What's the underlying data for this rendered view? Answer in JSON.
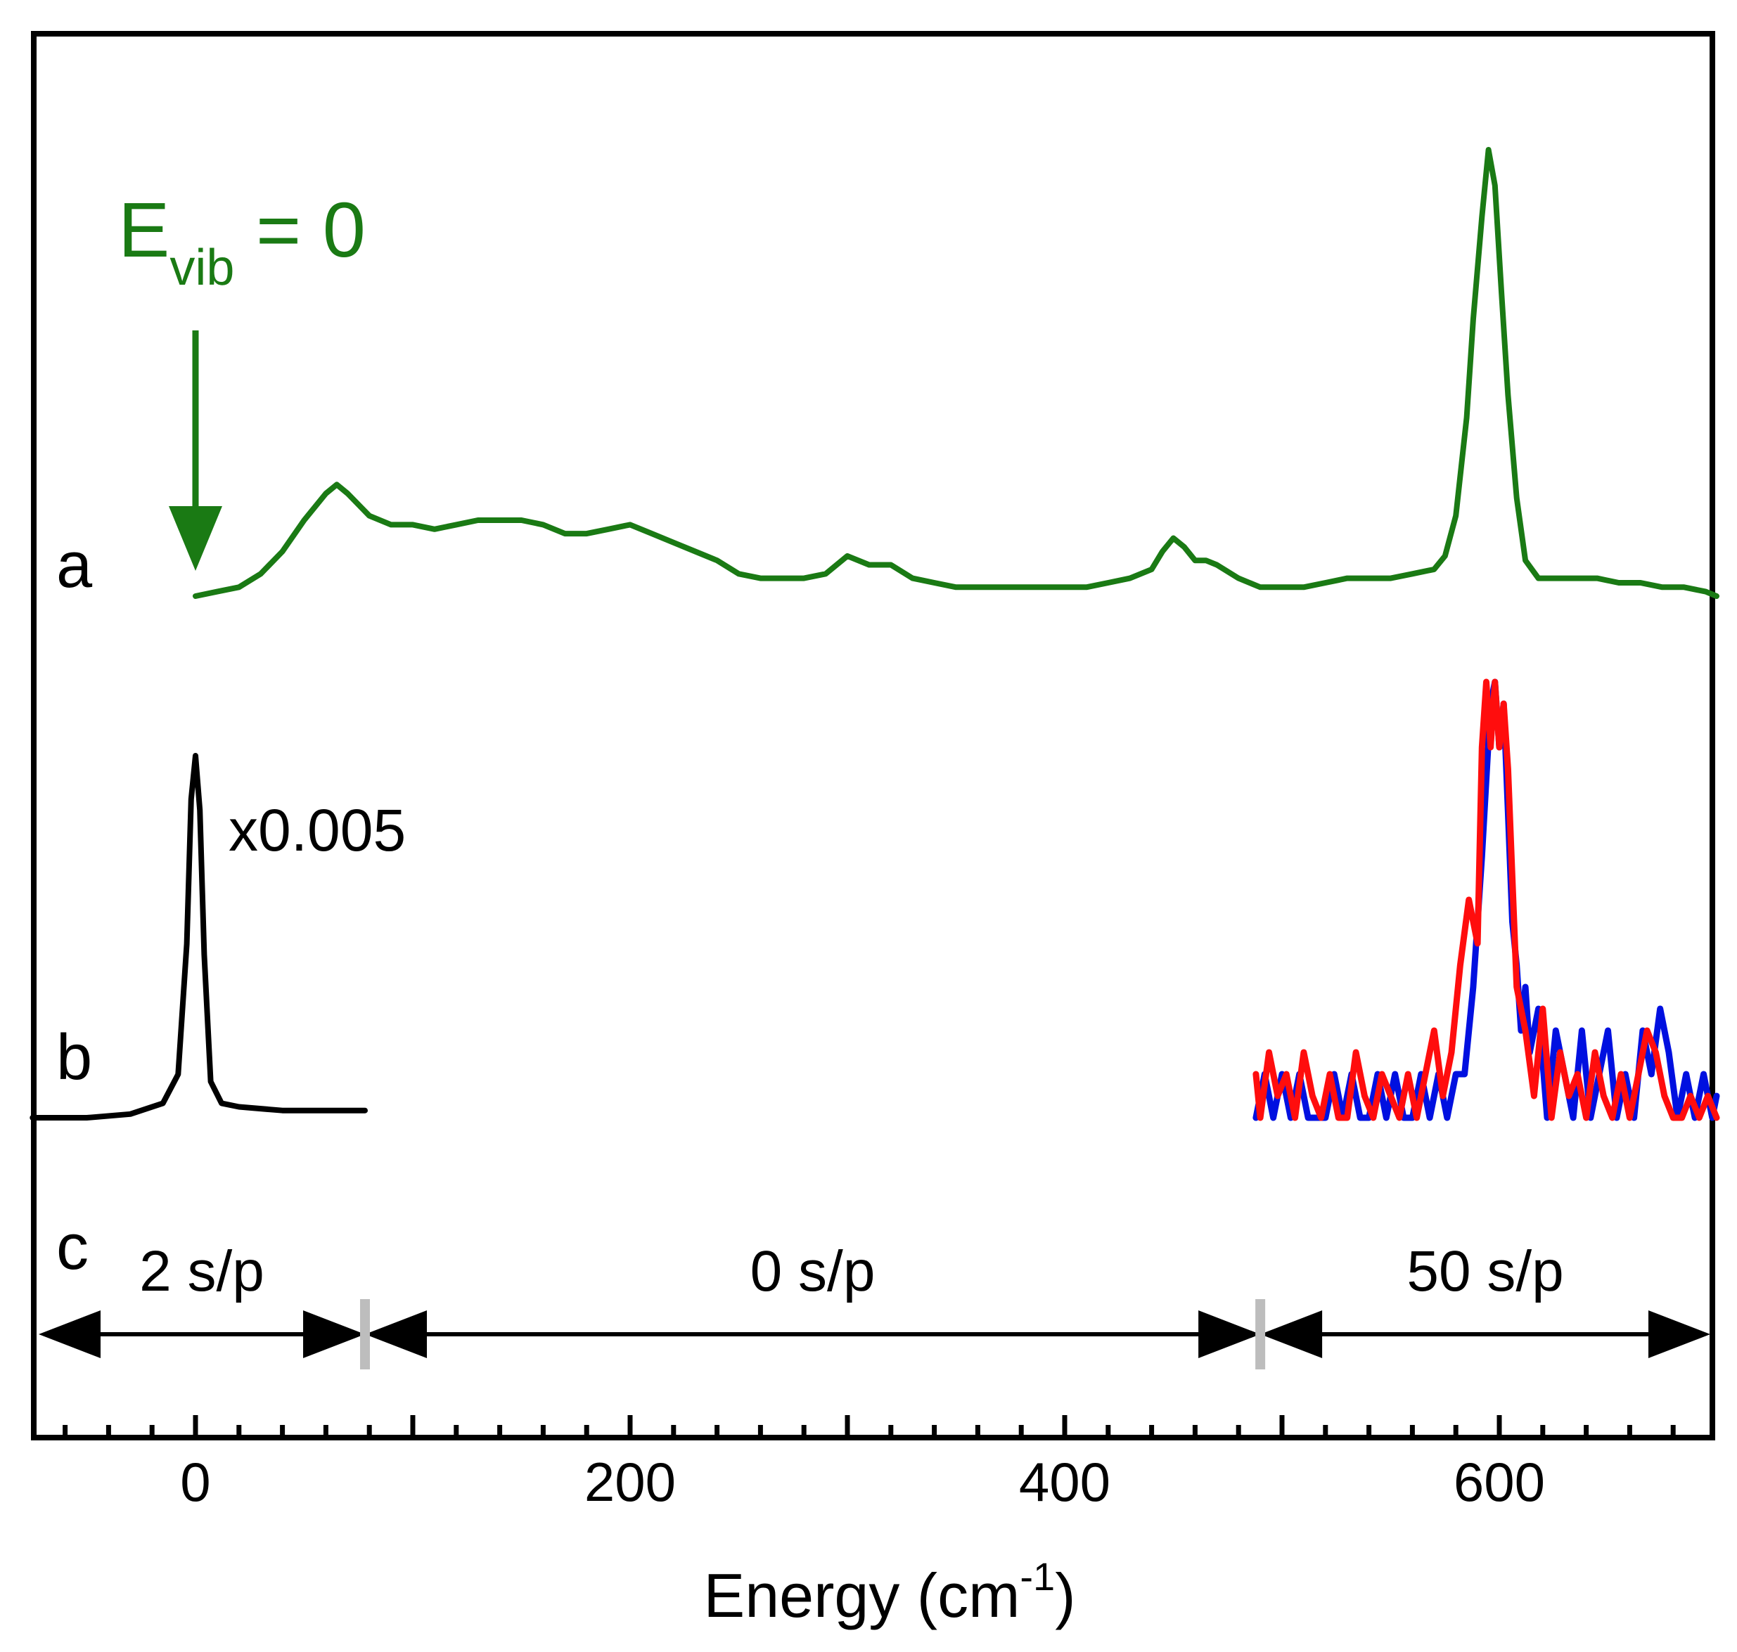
{
  "chart_data": {
    "type": "line",
    "title": "",
    "xlabel": "Energy (cm",
    "xlabel_superscript": "-1",
    "xlabel_suffix": ")",
    "ylabel": "",
    "xlim": [
      -75,
      700
    ],
    "x_ticks": [
      0,
      200,
      400,
      600
    ],
    "x_tick_labels": [
      "0",
      "200",
      "400",
      "600"
    ],
    "minor_tick_step": 20,
    "grid": false,
    "colors": {
      "green": "#1a7a14",
      "black": "#000000",
      "blue": "#0010e0",
      "red": "#ff0d0d",
      "gray": "#bdbdbd"
    },
    "panel_labels": [
      "a",
      "b",
      "c"
    ],
    "annotations": {
      "evib_main": "E",
      "evib_sub": "vib",
      "evib_rest": " = 0",
      "evib_x": 0,
      "scale_factor": "x0.005"
    },
    "series": [
      {
        "name": "a",
        "color": "#1a7a14",
        "x": [
          0,
          10,
          20,
          30,
          40,
          50,
          60,
          65,
          70,
          80,
          90,
          100,
          110,
          120,
          130,
          140,
          150,
          160,
          170,
          180,
          190,
          200,
          210,
          220,
          230,
          240,
          250,
          260,
          270,
          280,
          290,
          300,
          310,
          320,
          330,
          340,
          350,
          360,
          370,
          380,
          390,
          400,
          410,
          420,
          430,
          440,
          445,
          450,
          455,
          460,
          465,
          470,
          480,
          490,
          500,
          510,
          520,
          530,
          540,
          550,
          560,
          570,
          575,
          580,
          585,
          588,
          592,
          595,
          598,
          601,
          604,
          608,
          612,
          618,
          625,
          635,
          645,
          655,
          665,
          675,
          685,
          695,
          700
        ],
        "y": [
          0.0,
          0.01,
          0.02,
          0.05,
          0.1,
          0.17,
          0.23,
          0.25,
          0.23,
          0.18,
          0.16,
          0.16,
          0.15,
          0.16,
          0.17,
          0.17,
          0.17,
          0.16,
          0.14,
          0.14,
          0.15,
          0.16,
          0.14,
          0.12,
          0.1,
          0.08,
          0.05,
          0.04,
          0.04,
          0.04,
          0.05,
          0.09,
          0.07,
          0.07,
          0.04,
          0.03,
          0.02,
          0.02,
          0.02,
          0.02,
          0.02,
          0.02,
          0.02,
          0.03,
          0.04,
          0.06,
          0.1,
          0.13,
          0.11,
          0.08,
          0.08,
          0.07,
          0.04,
          0.02,
          0.02,
          0.02,
          0.03,
          0.04,
          0.04,
          0.04,
          0.05,
          0.06,
          0.09,
          0.18,
          0.4,
          0.62,
          0.85,
          1.0,
          0.92,
          0.68,
          0.45,
          0.22,
          0.08,
          0.04,
          0.04,
          0.04,
          0.04,
          0.03,
          0.03,
          0.02,
          0.02,
          0.01,
          0.0
        ]
      },
      {
        "name": "b",
        "color": "#000000",
        "x": [
          -75,
          -50,
          -30,
          -15,
          -8,
          -4,
          -2,
          0,
          2,
          4,
          7,
          12,
          20,
          40,
          60,
          78
        ],
        "y": [
          0.0,
          0.0,
          0.01,
          0.04,
          0.12,
          0.48,
          0.88,
          1.0,
          0.85,
          0.45,
          0.1,
          0.04,
          0.03,
          0.02,
          0.02,
          0.02
        ]
      },
      {
        "name": "b-blue",
        "color": "#0010e0",
        "x": [
          488,
          492,
          496,
          500,
          504,
          508,
          512,
          516,
          520,
          524,
          528,
          532,
          536,
          540,
          544,
          548,
          552,
          556,
          560,
          564,
          568,
          572,
          576,
          580,
          584,
          588,
          592,
          596,
          598,
          600,
          602,
          604,
          606,
          608,
          610,
          612,
          614,
          618,
          622,
          626,
          630,
          634,
          638,
          642,
          646,
          650,
          654,
          658,
          662,
          666,
          670,
          674,
          678,
          682,
          686,
          690,
          694,
          698,
          700
        ],
        "y": [
          0.0,
          0.1,
          0.0,
          0.1,
          0.0,
          0.1,
          0.0,
          0.0,
          0.0,
          0.1,
          0.0,
          0.1,
          0.0,
          0.0,
          0.1,
          0.0,
          0.1,
          0.0,
          0.0,
          0.1,
          0.0,
          0.1,
          0.0,
          0.1,
          0.1,
          0.3,
          0.6,
          0.95,
          1.0,
          0.85,
          0.95,
          0.7,
          0.45,
          0.35,
          0.2,
          0.3,
          0.15,
          0.25,
          0.0,
          0.2,
          0.1,
          0.0,
          0.2,
          0.0,
          0.1,
          0.2,
          0.0,
          0.1,
          0.0,
          0.2,
          0.1,
          0.25,
          0.15,
          0.0,
          0.1,
          0.0,
          0.1,
          0.0,
          0.05
        ]
      },
      {
        "name": "b-red",
        "color": "#ff0d0d",
        "x": [
          488,
          490,
          494,
          498,
          502,
          506,
          510,
          514,
          518,
          522,
          526,
          530,
          534,
          538,
          542,
          546,
          550,
          554,
          558,
          562,
          566,
          570,
          574,
          578,
          582,
          586,
          590,
          592,
          594,
          596,
          598,
          600,
          602,
          604,
          606,
          608,
          612,
          616,
          620,
          624,
          628,
          632,
          636,
          640,
          644,
          648,
          652,
          656,
          660,
          664,
          668,
          672,
          676,
          680,
          684,
          688,
          692,
          696,
          700
        ],
        "y": [
          0.1,
          0.0,
          0.15,
          0.05,
          0.1,
          0.0,
          0.15,
          0.05,
          0.0,
          0.1,
          0.0,
          0.0,
          0.15,
          0.05,
          0.0,
          0.1,
          0.05,
          0.0,
          0.1,
          0.0,
          0.1,
          0.2,
          0.05,
          0.15,
          0.35,
          0.5,
          0.4,
          0.85,
          1.0,
          0.85,
          1.0,
          0.85,
          0.95,
          0.8,
          0.55,
          0.3,
          0.2,
          0.05,
          0.25,
          0.0,
          0.15,
          0.05,
          0.1,
          0.0,
          0.15,
          0.05,
          0.0,
          0.1,
          0.0,
          0.1,
          0.2,
          0.15,
          0.05,
          0.0,
          0.0,
          0.05,
          0.0,
          0.05,
          0.0
        ]
      }
    ],
    "segments": [
      {
        "label": "2 s/p",
        "from": -75,
        "to": 78
      },
      {
        "label": "0 s/p",
        "from": 78,
        "to": 490
      },
      {
        "label": "50 s/p",
        "from": 490,
        "to": 700
      }
    ],
    "segment_boundaries": [
      78,
      490
    ]
  }
}
